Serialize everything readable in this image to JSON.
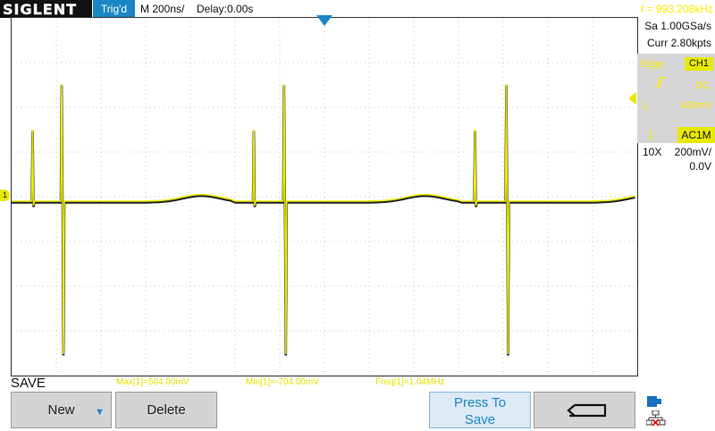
{
  "header": {
    "brand": "SIGLENT",
    "trigger_status": "Trig'd",
    "timebase": "M 200ns/",
    "delay": "Delay:0.00s",
    "frequency_readout": "f = 993.208kHz"
  },
  "side_panel": {
    "sample_rate": "Sa 1.00GSa/s",
    "memory_depth": "Curr 2.80kpts",
    "trigger": {
      "type": "Edge",
      "source": "CH1",
      "slope_icon": "rising-edge-icon",
      "coupling": "DC",
      "level_label": "L",
      "level": "432mV"
    },
    "channel": {
      "number": "1",
      "coupling": "AC1M",
      "probe": "10X",
      "scale": "200mV/",
      "offset": "0.0V"
    }
  },
  "markers": {
    "channel_marker": "1"
  },
  "measurements": {
    "max": "Max[1]=504.00mV",
    "min": "Min[1]=-704.00mV",
    "freq": "Freq[1]=1.04MHz"
  },
  "menu": {
    "title": "SAVE",
    "new_label": "New",
    "delete_label": "Delete",
    "press_to_save_line1": "Press To",
    "press_to_save_line2": "Save",
    "back_icon": "return-arrow-icon",
    "status_icons": [
      "usb-storage-icon",
      "network-disconnected-icon"
    ]
  },
  "colors": {
    "trace": "#e8e800",
    "trace_shadow": "#222222",
    "accent": "#1a86c5",
    "grid": "#c8c8c8"
  },
  "waveform": {
    "channel": "CH1",
    "baseline_mV": 0,
    "spike_max_mV": 504,
    "spike_min_mV": -704,
    "small_spike_mV": 300,
    "period_ns": 1000,
    "time_span_ns": 2800
  }
}
